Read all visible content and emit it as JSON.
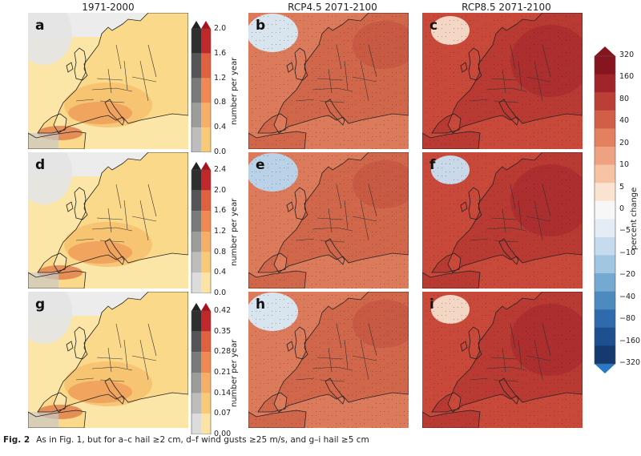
{
  "columns": [
    "1971-2000",
    "RCP4.5 2071-2100",
    "RCP8.5 2071-2100"
  ],
  "panels": [
    {
      "id": "a",
      "variant": "hist"
    },
    {
      "id": "b",
      "variant": "fut45"
    },
    {
      "id": "c",
      "variant": "fut85"
    },
    {
      "id": "d",
      "variant": "hist"
    },
    {
      "id": "e",
      "variant": "fut45"
    },
    {
      "id": "f",
      "variant": "fut85"
    },
    {
      "id": "g",
      "variant": "hist"
    },
    {
      "id": "h",
      "variant": "fut45"
    },
    {
      "id": "i",
      "variant": "fut85"
    }
  ],
  "colorbars": {
    "row_unit": "number per year",
    "row_ticks": [
      [
        "2.0",
        "1.6",
        "1.2",
        "0.8",
        "0.4",
        "0.0"
      ],
      [
        "2.4",
        "2.0",
        "1.6",
        "1.2",
        "0.8",
        "0.4",
        "0.0"
      ],
      [
        "0.42",
        "0.35",
        "0.28",
        "0.21",
        "0.14",
        "0.07",
        "0.00"
      ]
    ],
    "change_unit": "percent change",
    "change_ticks": [
      "320",
      "160",
      "80",
      "40",
      "20",
      "10",
      "5",
      "0",
      "−5",
      "−10",
      "−20",
      "−40",
      "−80",
      "−160",
      "−320"
    ],
    "colors": {
      "hist": [
        "#f2f2f2",
        "#fbe8b0",
        "#fbdc8e",
        "#f8c877",
        "#f2ac60",
        "#e88650",
        "#d35c3e"
      ],
      "change_warm": [
        "#fbe3d2",
        "#f6c4a5",
        "#efa282",
        "#e2805f",
        "#d15f48",
        "#bb3f36",
        "#a0242a",
        "#86151f"
      ],
      "change_cool": [
        "#e4edf5",
        "#c6dbee",
        "#9fc6e2",
        "#74a9d2",
        "#4d8ac0",
        "#2f6aac",
        "#1e4f8f",
        "#143a70"
      ]
    }
  },
  "caption": {
    "label": "Fig. 2",
    "text": "As in Fig. 1, but for a–c hail ≥2 cm, d–f wind gusts ≥25 m/s, and g–i hail ≥5 cm"
  }
}
